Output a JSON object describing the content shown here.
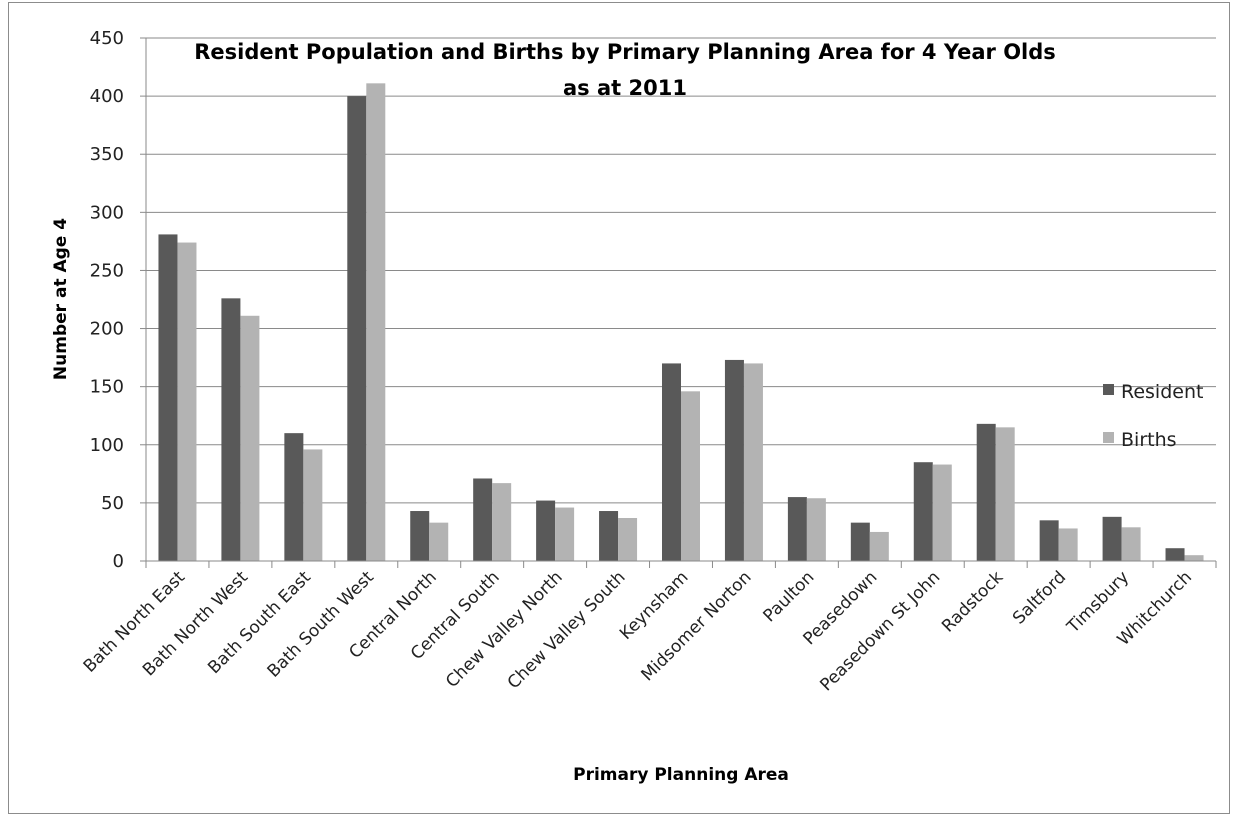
{
  "chart_data": {
    "type": "bar",
    "title_line1": "Resident Population and Births by Primary Planning Area for 4 Year Olds",
    "title_line2": "as at 2011",
    "xlabel": "Primary Planning Area",
    "ylabel": "Number at Age 4",
    "ylim": [
      0,
      450
    ],
    "yticks": [
      0,
      50,
      100,
      150,
      200,
      250,
      300,
      350,
      400,
      450
    ],
    "grid": true,
    "legend_position": "right",
    "categories": [
      "Bath North East",
      "Bath North West",
      "Bath South East",
      "Bath South West",
      "Central North",
      "Central South",
      "Chew Valley North",
      "Chew Valley South",
      "Keynsham",
      "Midsomer Norton",
      "Paulton",
      "Peasedown",
      "Peasedown St John",
      "Radstock",
      "Saltford",
      "Timsbury",
      "Whitchurch"
    ],
    "series": [
      {
        "name": "Resident",
        "color": "#595959",
        "values": [
          281,
          226,
          110,
          400,
          43,
          71,
          52,
          43,
          170,
          173,
          55,
          33,
          85,
          118,
          35,
          38,
          11
        ]
      },
      {
        "name": "Births",
        "color": "#b3b3b3",
        "values": [
          274,
          211,
          96,
          411,
          33,
          67,
          46,
          37,
          146,
          170,
          54,
          25,
          83,
          115,
          28,
          29,
          5
        ]
      }
    ]
  }
}
